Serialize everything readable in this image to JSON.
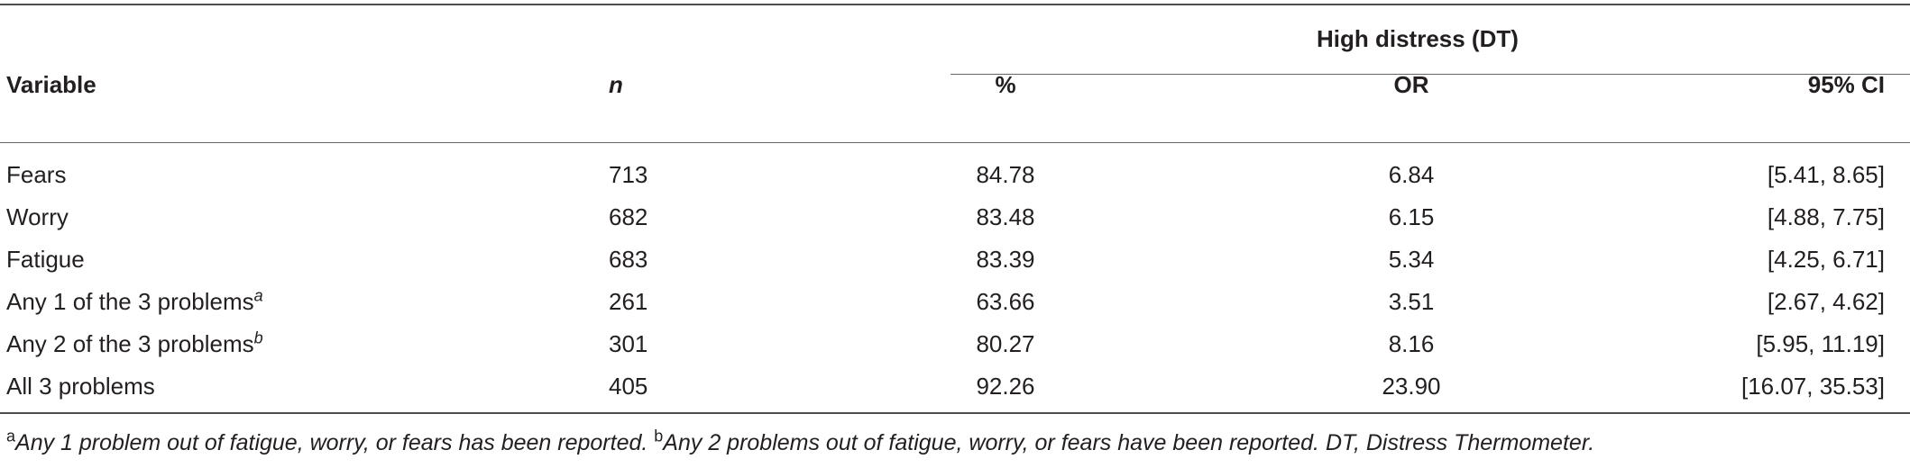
{
  "table": {
    "group_header": "High distress (DT)",
    "columns": {
      "variable": "Variable",
      "n": "n",
      "percent": "%",
      "or": "OR",
      "ci": "95% CI"
    },
    "rows": [
      {
        "variable": "Fears",
        "sup": "",
        "n": "713",
        "percent": "84.78",
        "or": "6.84",
        "ci": "[5.41, 8.65]"
      },
      {
        "variable": "Worry",
        "sup": "",
        "n": "682",
        "percent": "83.48",
        "or": "6.15",
        "ci": "[4.88, 7.75]"
      },
      {
        "variable": "Fatigue",
        "sup": "",
        "n": "683",
        "percent": "83.39",
        "or": "5.34",
        "ci": "[4.25, 6.71]"
      },
      {
        "variable": "Any 1 of the 3 problems",
        "sup": "a",
        "n": "261",
        "percent": "63.66",
        "or": "3.51",
        "ci": "[2.67, 4.62]"
      },
      {
        "variable": "Any 2 of the 3 problems",
        "sup": "b",
        "n": "301",
        "percent": "80.27",
        "or": "8.16",
        "ci": "[5.95, 11.19]"
      },
      {
        "variable": "All 3 problems",
        "sup": "",
        "n": "405",
        "percent": "92.26",
        "or": "23.90",
        "ci": "[16.07, 35.53]"
      }
    ]
  },
  "footnote": {
    "a_marker": "a",
    "a_text": "Any 1 problem out of fatigue, worry, or fears has been reported. ",
    "b_marker": "b",
    "b_text": "Any 2 problems out of fatigue, worry, or fears have been reported. DT, Distress Thermometer."
  }
}
